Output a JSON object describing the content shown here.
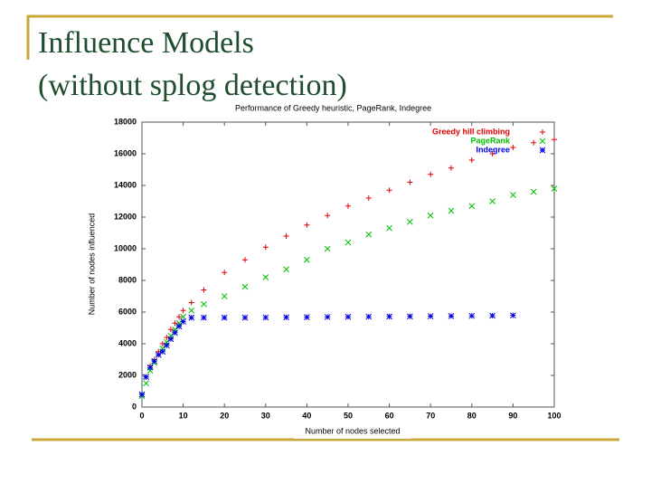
{
  "slide": {
    "title_lines": [
      "Influence Models",
      "(without splog detection)"
    ]
  },
  "chart_data": {
    "type": "scatter",
    "title": "Performance of Greedy heuristic, PageRank, Indegree",
    "x_label": "Number of nodes selected",
    "y_label": "Number of nodes influenced",
    "x": [
      0,
      1,
      2,
      3,
      4,
      5,
      6,
      7,
      8,
      9,
      10,
      12,
      15,
      20,
      25,
      30,
      35,
      40,
      45,
      50,
      55,
      60,
      65,
      70,
      75,
      80,
      85,
      90,
      95,
      100
    ],
    "series": [
      {
        "name": "Greedy hill climbing",
        "color": "#e00000",
        "marker": "plus",
        "values": [
          800,
          1900,
          2600,
          3000,
          3500,
          4000,
          4400,
          4900,
          5300,
          5700,
          6100,
          6600,
          7400,
          8500,
          9300,
          10100,
          10800,
          11500,
          12100,
          12700,
          13200,
          13700,
          14200,
          14700,
          15100,
          15600,
          16000,
          16400,
          16700,
          16900
        ]
      },
      {
        "name": "PageRank",
        "color": "#00c000",
        "marker": "cross",
        "values": [
          700,
          1500,
          2300,
          2800,
          3300,
          3700,
          4100,
          4500,
          4900,
          5300,
          5700,
          6100,
          6500,
          7000,
          7600,
          8200,
          8700,
          9300,
          10000,
          10400,
          10900,
          11300,
          11700,
          12100,
          12400,
          12700,
          13000,
          13400,
          13600,
          13800
        ]
      },
      {
        "name": "Indegree",
        "color": "#0000e0",
        "marker": "star",
        "values": [
          800,
          1900,
          2500,
          2900,
          3300,
          3500,
          3900,
          4300,
          4700,
          5100,
          5400,
          5650,
          5650,
          5650,
          5650,
          5660,
          5670,
          5680,
          5690,
          5700,
          5710,
          5720,
          5730,
          5740,
          5750,
          5760,
          5770,
          5790,
          null,
          null
        ]
      }
    ],
    "xlim": [
      0,
      100
    ],
    "xticks": [
      0,
      10,
      20,
      30,
      40,
      50,
      60,
      70,
      80,
      90,
      100
    ],
    "ylim": [
      0,
      18000
    ],
    "yticks": [
      0,
      2000,
      4000,
      6000,
      8000,
      10000,
      12000,
      14000,
      16000,
      18000
    ],
    "legend": "upper right"
  }
}
